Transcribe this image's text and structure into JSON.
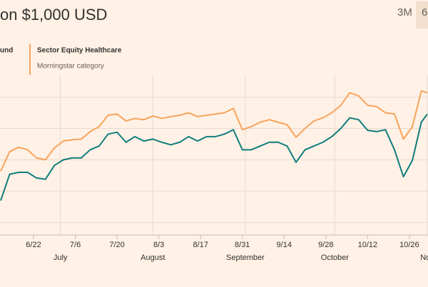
{
  "title": "on $1,000 USD",
  "controls": [
    "3M",
    "6"
  ],
  "chart_data": {
    "type": "line",
    "x": [
      "6/11",
      "6/14",
      "6/17",
      "6/20",
      "6/23",
      "6/26",
      "6/29",
      "7/2",
      "7/5",
      "7/8",
      "7/11",
      "7/14",
      "7/17",
      "7/20",
      "7/23",
      "7/26",
      "7/29",
      "8/1",
      "8/4",
      "8/7",
      "8/10",
      "8/13",
      "8/16",
      "8/19",
      "8/22",
      "8/25",
      "8/28",
      "8/31",
      "9/3",
      "9/6",
      "9/9",
      "9/12",
      "9/15",
      "9/18",
      "9/21",
      "9/24",
      "9/27",
      "9/30",
      "10/3",
      "10/6",
      "10/9",
      "10/12",
      "10/15",
      "10/18",
      "10/21",
      "10/24",
      "10/27",
      "10/30",
      "11/1"
    ],
    "series": [
      {
        "name": "und",
        "color": "#0f7d7e",
        "values": [
          885,
          927,
          930,
          930,
          921,
          919,
          941,
          950,
          953,
          953,
          966,
          972,
          991,
          994,
          978,
          987,
          980,
          983,
          978,
          974,
          978,
          987,
          980,
          987,
          987,
          991,
          998,
          966,
          966,
          972,
          978,
          978,
          972,
          946,
          966,
          972,
          978,
          987,
          1000,
          1017,
          1014,
          997,
          995,
          998,
          966,
          923,
          949,
          1010,
          1023
        ]
      },
      {
        "name": "Sector Equity Healthcare",
        "description": "Morningstar category",
        "color": "#f7a35c",
        "values": [
          932,
          963,
          970,
          966,
          953,
          950,
          969,
          980,
          982,
          983,
          995,
          1003,
          1021,
          1023,
          1012,
          1016,
          1014,
          1020,
          1016,
          1019,
          1021,
          1025,
          1019,
          1021,
          1023,
          1025,
          1032,
          998,
          1003,
          1010,
          1014,
          1010,
          1006,
          986,
          1000,
          1012,
          1017,
          1025,
          1037,
          1057,
          1052,
          1037,
          1035,
          1025,
          1023,
          983,
          1003,
          1060,
          1057
        ]
      }
    ],
    "xlim": [
      "6/11",
      "11/1"
    ],
    "xticks": [
      "6/22",
      "7/6",
      "7/20",
      "8/3",
      "8/17",
      "8/31",
      "9/14",
      "9/28",
      "10/12",
      "10/26"
    ],
    "month_ticks": [
      {
        "value": "7/1",
        "label": "July"
      },
      {
        "value": "8/1",
        "label": "August"
      },
      {
        "value": "9/1",
        "label": "September"
      },
      {
        "value": "10/1",
        "label": "October"
      },
      {
        "value": "11/1",
        "label": "Nov"
      }
    ],
    "ylim": [
      830,
      1080
    ],
    "yticks": [
      850,
      900,
      950,
      1000,
      1050
    ],
    "grid": true
  }
}
